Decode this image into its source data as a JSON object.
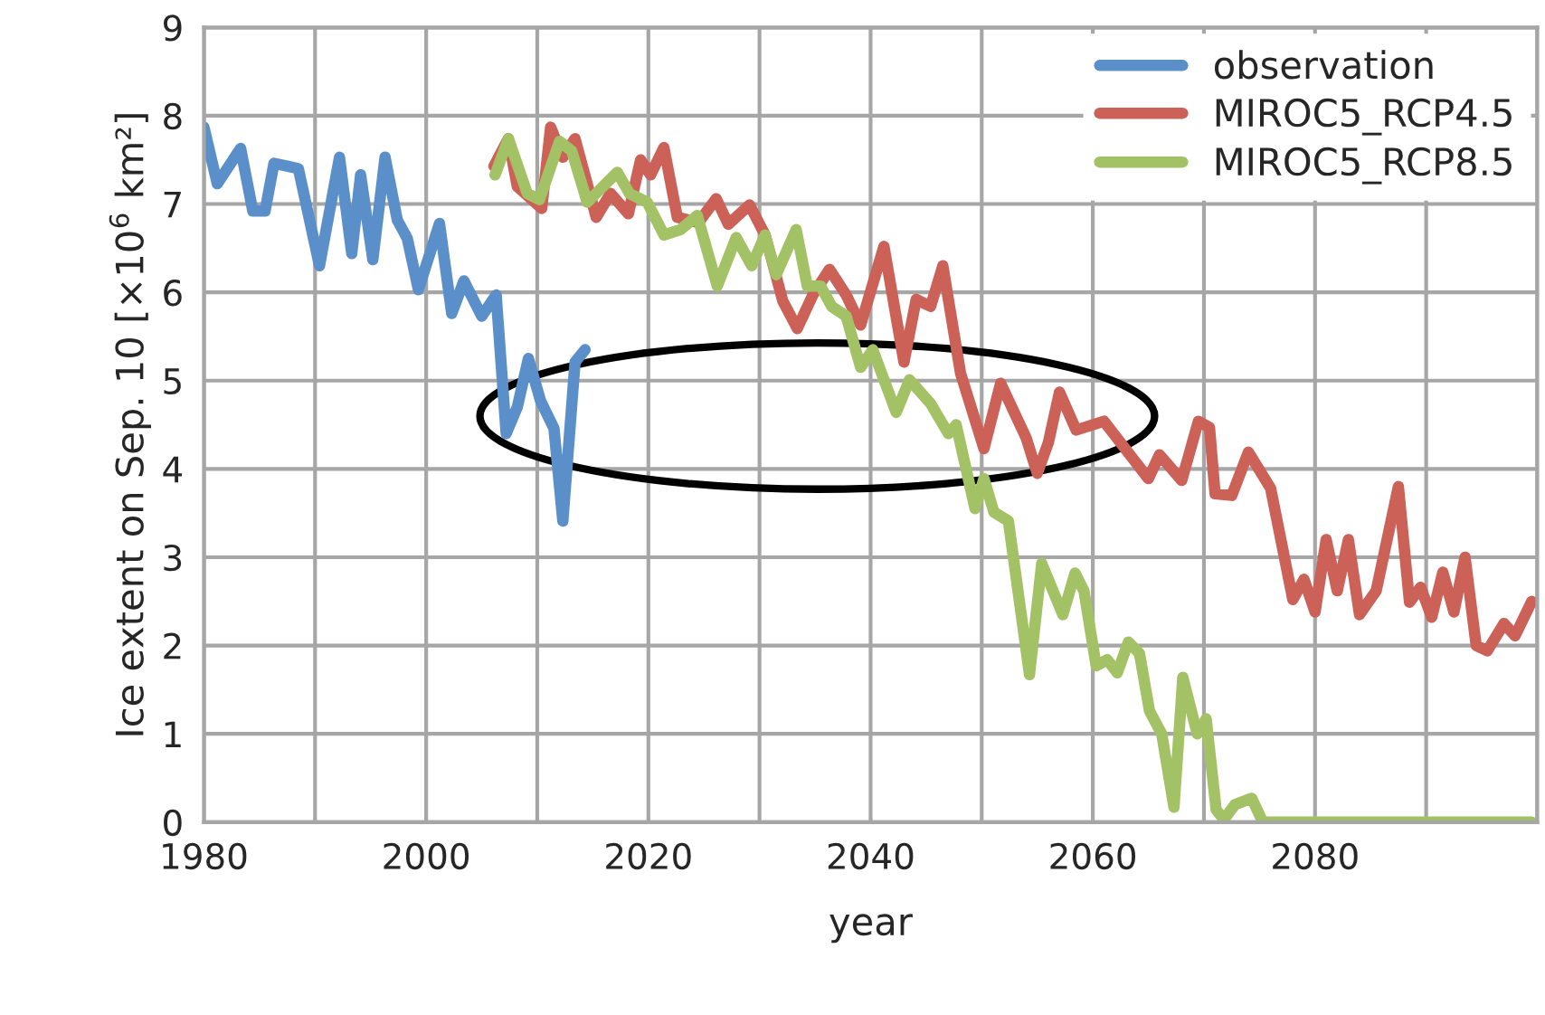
{
  "chart_data": {
    "type": "line",
    "xlabel": "year",
    "ylabel": "Ice extent on Sep. 10 [×10$^{6}$ km²]",
    "xlim": [
      1980,
      2100
    ],
    "ylim": [
      0,
      9
    ],
    "xticks": [
      1980,
      {
        "value": 1990,
        "label": null
      },
      2000,
      {
        "value": 2010,
        "label": null
      },
      2020,
      {
        "value": 2030,
        "label": null
      },
      2040,
      {
        "value": 2050,
        "label": null
      },
      2060,
      {
        "value": 2070,
        "label": null
      },
      2080,
      {
        "value": 2090,
        "label": null
      },
      {
        "value": 2100,
        "label": null
      }
    ],
    "yticks": [
      0,
      1,
      2,
      3,
      4,
      5,
      6,
      7,
      8,
      9
    ],
    "grid": true,
    "legend": "top right",
    "marker": "none",
    "line_style": "solid",
    "series": [
      {
        "name": "observation",
        "color": "#5b8fc9",
        "x": [
          1980,
          1981.2,
          1983.3,
          1984.4,
          1985.5,
          1986.3,
          1987.5,
          1988.5,
          1990.4,
          1992.2,
          1993.3,
          1994.1,
          1995.2,
          1996.3,
          1997.4,
          1998.3,
          1999.3,
          2001.2,
          2002.3,
          2003.4,
          2005.0,
          2006.3,
          2007.2,
          2008.2,
          2009.2,
          2010.3,
          2011.5,
          2012.3,
          2013.4,
          2014.3
        ],
        "values": [
          7.87,
          7.23,
          7.63,
          6.92,
          6.92,
          7.46,
          7.43,
          7.4,
          6.3,
          7.53,
          6.44,
          7.33,
          6.37,
          7.53,
          6.82,
          6.61,
          6.03,
          6.78,
          5.76,
          6.13,
          5.73,
          5.97,
          4.4,
          4.7,
          5.25,
          4.77,
          4.46,
          3.41,
          5.21,
          5.35
        ]
      },
      {
        "name": "MIROC5_RCP4.5",
        "color": "#cc6158",
        "x": [
          2006.1,
          2007.4,
          2008.2,
          2010.4,
          2011.2,
          2012.3,
          2013.4,
          2015.3,
          2016.6,
          2018.2,
          2019.3,
          2020.2,
          2021.4,
          2022.6,
          2024.5,
          2026.1,
          2027.2,
          2029.1,
          2030.5,
          2032.1,
          2033.4,
          2034.8,
          2036.3,
          2037.8,
          2039.1,
          2041.2,
          2043.0,
          2044.1,
          2045.4,
          2046.5,
          2048.1,
          2050.2,
          2051.7,
          2054.0,
          2055.0,
          2056.0,
          2057.0,
          2058.5,
          2061.0,
          2065.0,
          2066.0,
          2068.0,
          2069.5,
          2070.5,
          2071.0,
          2072.5,
          2074.0,
          2076.0,
          2078.0,
          2079.0,
          2080.0,
          2081.0,
          2082.0,
          2083.0,
          2084.0,
          2085.5,
          2087.5,
          2088.5,
          2089.5,
          2090.5,
          2091.5,
          2092.5,
          2093.5,
          2094.5,
          2095.5,
          2097.0,
          2098.0,
          2099.5
        ],
        "values": [
          7.43,
          7.74,
          7.2,
          6.95,
          7.87,
          7.53,
          7.74,
          6.85,
          7.12,
          6.89,
          7.5,
          7.33,
          7.64,
          6.85,
          6.79,
          7.06,
          6.77,
          6.99,
          6.65,
          5.9,
          5.59,
          5.97,
          6.26,
          5.97,
          5.63,
          6.52,
          5.21,
          5.92,
          5.84,
          6.3,
          5.08,
          4.23,
          4.97,
          4.35,
          3.95,
          4.3,
          4.87,
          4.44,
          4.54,
          3.89,
          4.16,
          3.87,
          4.54,
          4.47,
          3.72,
          3.7,
          4.19,
          3.78,
          2.52,
          2.75,
          2.38,
          3.2,
          2.62,
          3.2,
          2.35,
          2.62,
          3.8,
          2.49,
          2.66,
          2.32,
          2.83,
          2.38,
          3.0,
          2.0,
          1.94,
          2.25,
          2.11,
          2.5
        ]
      },
      {
        "name": "MIROC5_RCP8.5",
        "color": "#a3c266",
        "x": [
          2006.2,
          2007.4,
          2009.1,
          2010.2,
          2012.0,
          2013.1,
          2014.5,
          2017.2,
          2018.3,
          2019.9,
          2021.4,
          2022.9,
          2024.4,
          2026.2,
          2027.9,
          2029.3,
          2030.5,
          2031.5,
          2033.3,
          2034.3,
          2035.5,
          2036.5,
          2037.8,
          2039.1,
          2040.2,
          2042.3,
          2043.5,
          2045.4,
          2047.0,
          2047.7,
          2049.4,
          2050.2,
          2051.1,
          2052.4,
          2054.3,
          2055.4,
          2057.3,
          2058.4,
          2059.2,
          2060.3,
          2061.3,
          2062.2,
          2063.2,
          2064.2,
          2065.1,
          2066.2,
          2067.3,
          2068.1,
          2069.4,
          2070.2,
          2071.1,
          2071.8,
          2072.8,
          2074.3,
          2075.3,
          2099.5
        ],
        "values": [
          7.33,
          7.74,
          7.12,
          7.05,
          7.71,
          7.6,
          7.02,
          7.36,
          7.12,
          7.02,
          6.65,
          6.71,
          6.87,
          6.07,
          6.62,
          6.3,
          6.65,
          6.2,
          6.71,
          6.07,
          6.07,
          5.84,
          5.73,
          5.15,
          5.35,
          4.64,
          5.01,
          4.74,
          4.4,
          4.5,
          3.55,
          3.89,
          3.51,
          3.41,
          1.67,
          2.93,
          2.35,
          2.82,
          2.62,
          1.77,
          1.84,
          1.69,
          2.04,
          1.91,
          1.26,
          1.0,
          0.17,
          1.64,
          1.0,
          1.17,
          0.14,
          0.03,
          0.2,
          0.27,
          0.0,
          0.0
        ]
      }
    ]
  }
}
